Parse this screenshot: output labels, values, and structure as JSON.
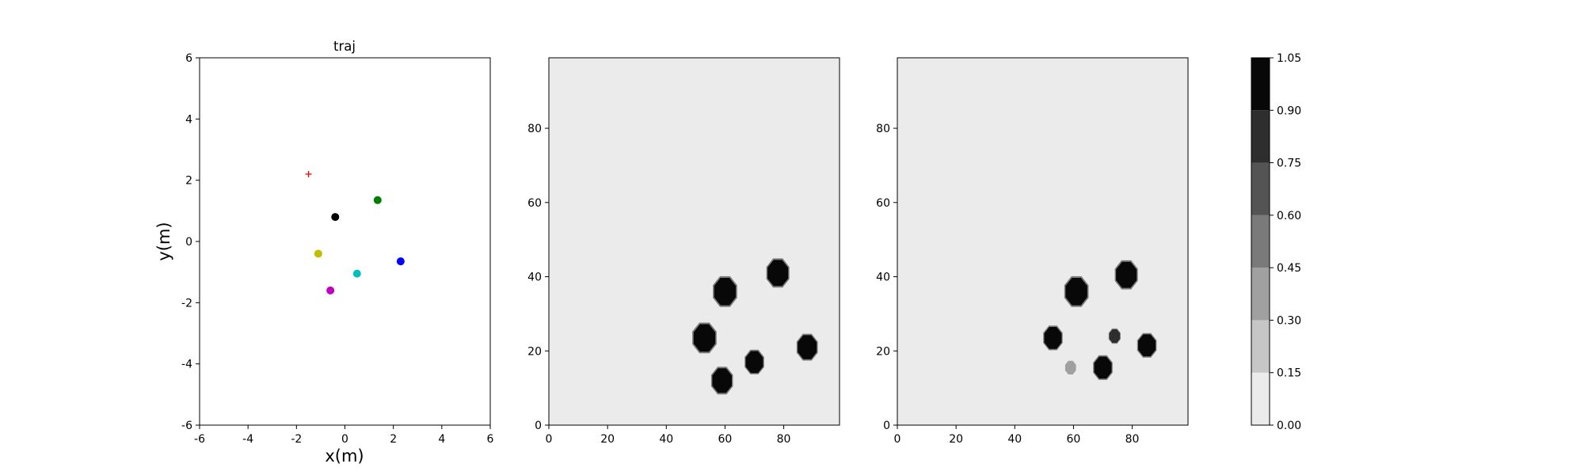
{
  "chart_data": [
    {
      "type": "scatter",
      "title": "traj",
      "xlabel": "x(m)",
      "ylabel": "y(m)",
      "xlim": [
        -6,
        6
      ],
      "ylim": [
        -6,
        6
      ],
      "xticks": [
        -6,
        -4,
        -2,
        0,
        2,
        4,
        6
      ],
      "yticks": [
        -6,
        -4,
        -2,
        0,
        2,
        4,
        6
      ],
      "grid": false,
      "points": [
        {
          "x": -1.5,
          "y": 2.2,
          "color": "#ff0000",
          "marker": "plus"
        },
        {
          "x": 1.35,
          "y": 1.35,
          "color": "#008000",
          "marker": "circle"
        },
        {
          "x": -0.4,
          "y": 0.8,
          "color": "#000000",
          "marker": "circle"
        },
        {
          "x": -1.1,
          "y": -0.4,
          "color": "#bfbf00",
          "marker": "circle"
        },
        {
          "x": 0.5,
          "y": -1.05,
          "color": "#00bfbf",
          "marker": "circle"
        },
        {
          "x": 2.3,
          "y": -0.65,
          "color": "#0000ff",
          "marker": "circle"
        },
        {
          "x": -0.6,
          "y": -1.6,
          "color": "#bf00bf",
          "marker": "circle"
        }
      ]
    },
    {
      "type": "heatmap",
      "xlim": [
        0,
        99
      ],
      "ylim": [
        0,
        99
      ],
      "xticks": [
        0,
        20,
        40,
        60,
        80
      ],
      "yticks": [
        0,
        20,
        40,
        60,
        80
      ],
      "background_level": 0.0,
      "blobs": [
        {
          "x": 60,
          "y": 36,
          "r": 4,
          "level": 1.0
        },
        {
          "x": 78,
          "y": 41,
          "r": 3.8,
          "level": 1.0
        },
        {
          "x": 53,
          "y": 23.5,
          "r": 4,
          "level": 1.0
        },
        {
          "x": 88,
          "y": 21,
          "r": 3.5,
          "level": 1.0
        },
        {
          "x": 70,
          "y": 17,
          "r": 3.2,
          "level": 1.0
        },
        {
          "x": 59,
          "y": 12,
          "r": 3.6,
          "level": 1.0
        }
      ]
    },
    {
      "type": "heatmap",
      "xlim": [
        0,
        99
      ],
      "ylim": [
        0,
        99
      ],
      "xticks": [
        0,
        20,
        40,
        60,
        80
      ],
      "yticks": [
        0,
        20,
        40,
        60,
        80
      ],
      "background_level": 0.0,
      "blobs": [
        {
          "x": 61,
          "y": 36,
          "r": 4,
          "level": 1.0
        },
        {
          "x": 78,
          "y": 40.5,
          "r": 3.8,
          "level": 1.0
        },
        {
          "x": 53,
          "y": 23.5,
          "r": 3.2,
          "level": 1.0
        },
        {
          "x": 85,
          "y": 21.5,
          "r": 3.2,
          "level": 0.9
        },
        {
          "x": 70,
          "y": 15.5,
          "r": 3.2,
          "level": 1.0
        },
        {
          "x": 74,
          "y": 24,
          "r": 2,
          "level": 0.8
        },
        {
          "x": 59,
          "y": 15.5,
          "r": 2,
          "level": 0.4
        }
      ]
    },
    {
      "type": "colorbar",
      "ticks": [
        "0.00",
        "0.15",
        "0.30",
        "0.45",
        "0.60",
        "0.75",
        "0.90",
        "1.05"
      ],
      "colors": [
        "#ebebeb",
        "#c6c6c6",
        "#a0a0a0",
        "#7a7a7a",
        "#545454",
        "#2e2e2e",
        "#080808"
      ]
    }
  ]
}
